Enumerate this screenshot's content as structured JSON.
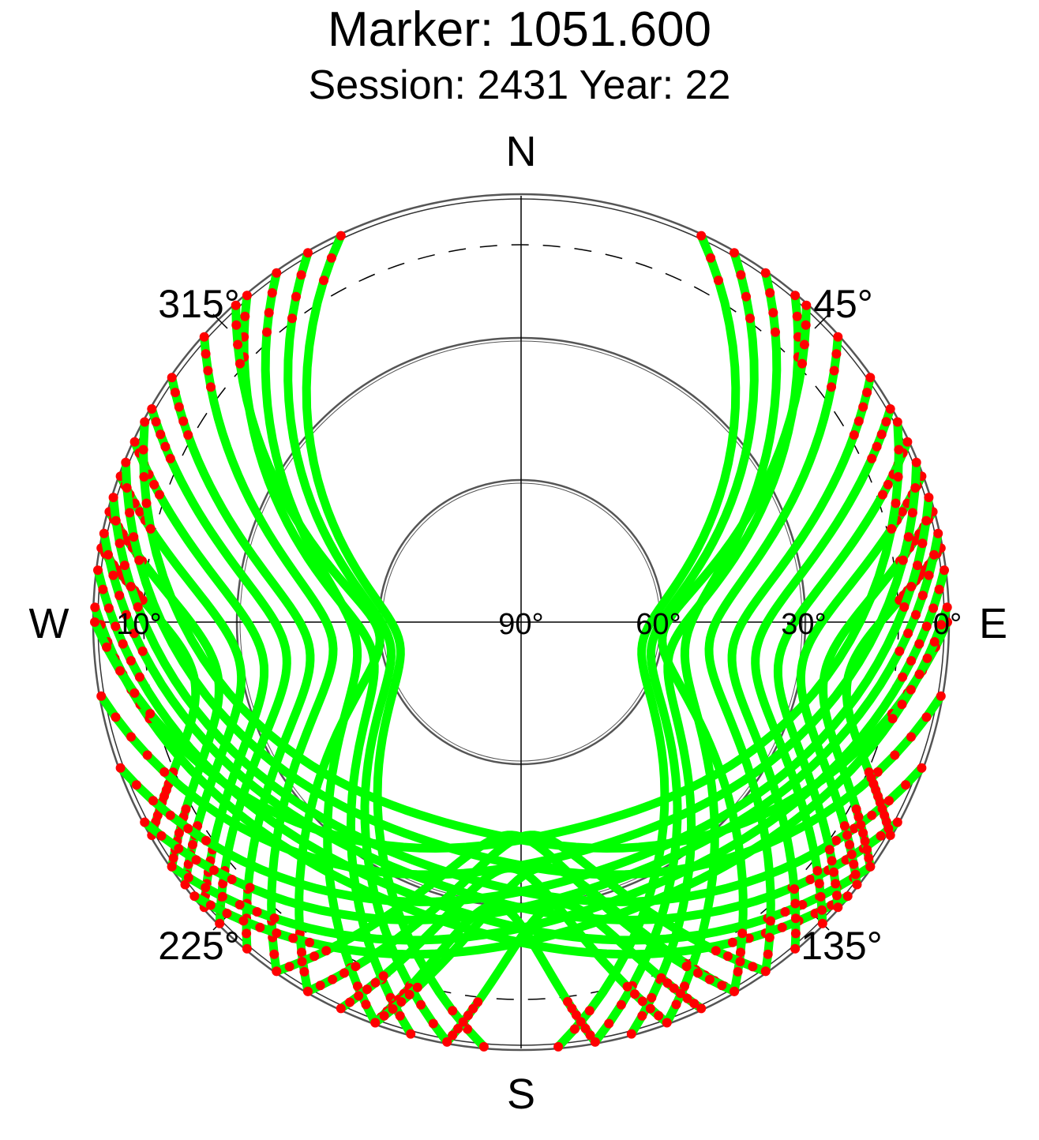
{
  "chart_data": {
    "type": "scatter",
    "projection": "polar-skyplot",
    "title": "Marker: 1051.600",
    "subtitle": "Session: 2431 Year: 22",
    "cardinals": {
      "north": "N",
      "south": "S",
      "east": "E",
      "west": "W"
    },
    "azimuth_labels": [
      "45°",
      "135°",
      "225°",
      "315°"
    ],
    "elevation_labels": [
      "0°",
      "10°",
      "30°",
      "60°",
      "90°"
    ],
    "elevation_rings": [
      0,
      30,
      60
    ],
    "elevation_mask": 10,
    "low_elevation_threshold": 10,
    "colors": {
      "above_threshold": "#00ff00",
      "below_threshold": "#ff0000",
      "axes": "#000000",
      "rings": "#555555"
    },
    "grid": true,
    "series": [
      {
        "az_start": 325,
        "az_end": 200,
        "max_el": 55,
        "dir": -1
      },
      {
        "az_start": 320,
        "az_end": 195,
        "max_el": 58,
        "dir": -1
      },
      {
        "az_start": 318,
        "az_end": 210,
        "max_el": 60,
        "dir": -1
      },
      {
        "az_start": 330,
        "az_end": 190,
        "max_el": 62,
        "dir": -1
      },
      {
        "az_start": 335,
        "az_end": 185,
        "max_el": 64,
        "dir": -1
      },
      {
        "az_start": 312,
        "az_end": 215,
        "max_el": 50,
        "dir": -1
      },
      {
        "az_start": 305,
        "az_end": 220,
        "max_el": 45,
        "dir": -1
      },
      {
        "az_start": 300,
        "az_end": 225,
        "max_el": 40,
        "dir": -1
      },
      {
        "az_start": 295,
        "az_end": 228,
        "max_el": 35,
        "dir": -1
      },
      {
        "az_start": 290,
        "az_end": 232,
        "max_el": 30,
        "dir": -1
      },
      {
        "az_start": 285,
        "az_end": 235,
        "max_el": 25,
        "dir": -1
      },
      {
        "az_start": 280,
        "az_end": 240,
        "max_el": 20,
        "dir": -1
      },
      {
        "az_start": 298,
        "az_end": 90,
        "max_el": 45,
        "dir": -1
      },
      {
        "az_start": 292,
        "az_end": 100,
        "max_el": 40,
        "dir": -1
      },
      {
        "az_start": 287,
        "az_end": 110,
        "max_el": 35,
        "dir": -1
      },
      {
        "az_start": 282,
        "az_end": 118,
        "max_el": 32,
        "dir": -1
      },
      {
        "az_start": 277,
        "az_end": 125,
        "max_el": 28,
        "dir": -1
      },
      {
        "az_start": 272,
        "az_end": 130,
        "max_el": 25,
        "dir": -1
      },
      {
        "az_start": 35,
        "az_end": 160,
        "max_el": 55,
        "dir": 1
      },
      {
        "az_start": 40,
        "az_end": 165,
        "max_el": 58,
        "dir": 1
      },
      {
        "az_start": 42,
        "az_end": 150,
        "max_el": 60,
        "dir": 1
      },
      {
        "az_start": 30,
        "az_end": 170,
        "max_el": 62,
        "dir": 1
      },
      {
        "az_start": 25,
        "az_end": 175,
        "max_el": 64,
        "dir": 1
      },
      {
        "az_start": 48,
        "az_end": 145,
        "max_el": 50,
        "dir": 1
      },
      {
        "az_start": 55,
        "az_end": 140,
        "max_el": 45,
        "dir": 1
      },
      {
        "az_start": 60,
        "az_end": 135,
        "max_el": 40,
        "dir": 1
      },
      {
        "az_start": 65,
        "az_end": 132,
        "max_el": 35,
        "dir": 1
      },
      {
        "az_start": 70,
        "az_end": 128,
        "max_el": 30,
        "dir": 1
      },
      {
        "az_start": 75,
        "az_end": 125,
        "max_el": 25,
        "dir": 1
      },
      {
        "az_start": 80,
        "az_end": 120,
        "max_el": 20,
        "dir": 1
      },
      {
        "az_start": 62,
        "az_end": 270,
        "max_el": 45,
        "dir": 1
      },
      {
        "az_start": 68,
        "az_end": 260,
        "max_el": 40,
        "dir": 1
      },
      {
        "az_start": 73,
        "az_end": 250,
        "max_el": 35,
        "dir": 1
      },
      {
        "az_start": 78,
        "az_end": 242,
        "max_el": 32,
        "dir": 1
      },
      {
        "az_start": 83,
        "az_end": 235,
        "max_el": 28,
        "dir": 1
      },
      {
        "az_start": 88,
        "az_end": 230,
        "max_el": 25,
        "dir": 1
      },
      {
        "az_start": 200,
        "az_end": 170,
        "max_el": 30,
        "dir": -1
      },
      {
        "az_start": 205,
        "az_end": 160,
        "max_el": 38,
        "dir": -1
      },
      {
        "az_start": 155,
        "az_end": 190,
        "max_el": 30,
        "dir": 1
      },
      {
        "az_start": 150,
        "az_end": 200,
        "max_el": 38,
        "dir": 1
      },
      {
        "az_start": 215,
        "az_end": 150,
        "max_el": 45,
        "dir": -1
      },
      {
        "az_start": 145,
        "az_end": 210,
        "max_el": 45,
        "dir": 1
      }
    ]
  }
}
